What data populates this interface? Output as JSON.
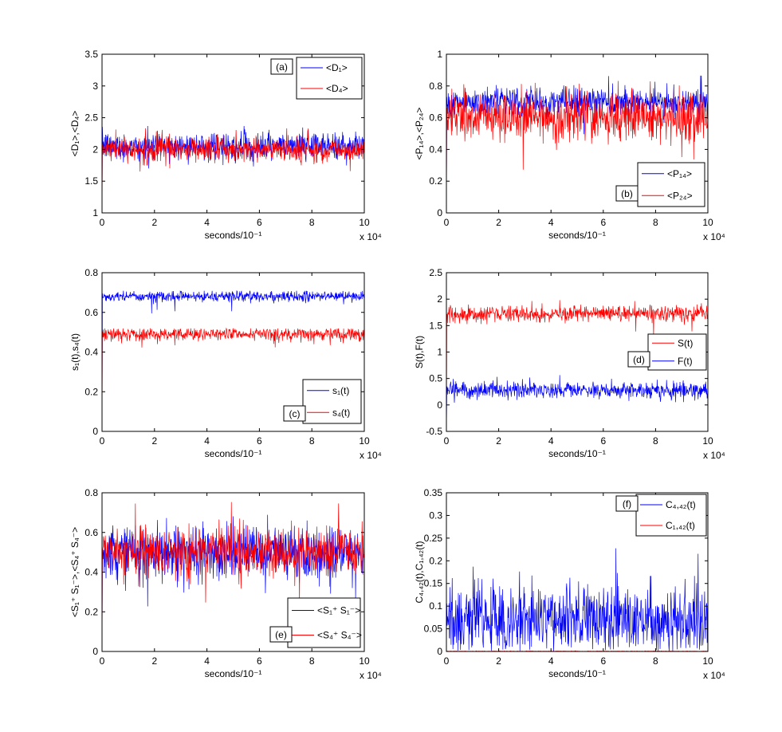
{
  "chart_data": [
    {
      "id": "a",
      "type": "line",
      "panel_label": "(a)",
      "xlabel": "seconds/10⁻¹",
      "ylabel": "<D₁>,<D₄>",
      "x_exponent": "x 10⁴",
      "xlim": [
        0,
        10
      ],
      "ylim": [
        1,
        3.5
      ],
      "xticks": [
        "0",
        "2",
        "4",
        "6",
        "8",
        "10"
      ],
      "yticks": [
        "1",
        "1.5",
        "2",
        "2.5",
        "3",
        "3.5"
      ],
      "legend_position": "top-right",
      "series": [
        {
          "name": "<D₁>",
          "color": "#0000ff",
          "center": 2.05,
          "spread": 0.2,
          "min": 1.7,
          "max": 2.48
        },
        {
          "name": "<D₄>",
          "color": "#ff0000",
          "center": 2.0,
          "spread": 0.18,
          "min": 1.65,
          "max": 2.35
        }
      ]
    },
    {
      "id": "b",
      "type": "line",
      "panel_label": "(b)",
      "xlabel": "seconds/10⁻¹",
      "ylabel": "<P₁₄>,<P₂₄>",
      "x_exponent": "x 10⁴",
      "xlim": [
        0,
        10
      ],
      "ylim": [
        0,
        1
      ],
      "xticks": [
        "0",
        "2",
        "4",
        "6",
        "8",
        "10"
      ],
      "yticks": [
        "0",
        "0.2",
        "0.4",
        "0.6",
        "0.8",
        "1"
      ],
      "legend_position": "bottom-right",
      "series": [
        {
          "name": "<P₁₄>",
          "color": "#0000ff",
          "center": 0.7,
          "spread": 0.08,
          "min": 0.45,
          "max": 0.87
        },
        {
          "name": "<P₂₄>",
          "color": "#ff0000",
          "center": 0.6,
          "spread": 0.14,
          "min": 0.22,
          "max": 0.85
        }
      ]
    },
    {
      "id": "c",
      "type": "line",
      "panel_label": "(c)",
      "xlabel": "seconds/10⁻¹",
      "ylabel": "s₁(t),s₄(t)",
      "x_exponent": "x 10⁴",
      "xlim": [
        0,
        10
      ],
      "ylim": [
        0,
        0.8
      ],
      "xticks": [
        "0",
        "2",
        "4",
        "6",
        "8",
        "10"
      ],
      "yticks": [
        "0",
        "0.2",
        "0.4",
        "0.6",
        "0.8"
      ],
      "legend_position": "bottom-right",
      "series": [
        {
          "name": "s₁(t)",
          "color": "#0000ff",
          "center": 0.68,
          "spread": 0.025,
          "min": 0.55,
          "max": 0.71
        },
        {
          "name": "s₄(t)",
          "color": "#ff0000",
          "center": 0.49,
          "spread": 0.03,
          "min": 0.37,
          "max": 0.52
        }
      ]
    },
    {
      "id": "d",
      "type": "line",
      "panel_label": "(d)",
      "xlabel": "seconds/10⁻¹",
      "ylabel": "S(t),F(t)",
      "x_exponent": "x 10⁴",
      "xlim": [
        0,
        10
      ],
      "ylim": [
        -0.5,
        2.5
      ],
      "xticks": [
        "0",
        "2",
        "4",
        "6",
        "8",
        "10"
      ],
      "yticks": [
        "-0.5",
        "0",
        "0.5",
        "1",
        "1.5",
        "2",
        "2.5"
      ],
      "legend_position": "center-right",
      "series": [
        {
          "name": "S(t)",
          "color": "#ff0000",
          "center": 1.72,
          "spread": 0.14,
          "min": 1.15,
          "max": 2.0
        },
        {
          "name": "F(t)",
          "color": "#0000ff",
          "center": 0.28,
          "spread": 0.14,
          "min": 0.03,
          "max": 0.7
        }
      ]
    },
    {
      "id": "e",
      "type": "line",
      "panel_label": "(e)",
      "xlabel": "seconds/10⁻¹",
      "ylabel": "<S₁⁺ S₁⁻>,<S₄⁺ S₄⁻>",
      "x_exponent": "x 10⁴",
      "xlim": [
        0,
        10
      ],
      "ylim": [
        0,
        0.8
      ],
      "xticks": [
        "0",
        "2",
        "4",
        "6",
        "8",
        "10"
      ],
      "yticks": [
        "0",
        "0.2",
        "0.4",
        "0.6",
        "0.8"
      ],
      "legend_position": "bottom-right",
      "series": [
        {
          "name": "<S₁⁺ S₁⁻>",
          "color": "#0000ff",
          "center": 0.5,
          "spread": 0.12,
          "min": 0.22,
          "max": 0.77
        },
        {
          "name": "<S₄⁺ S₄⁻>",
          "color": "#ff0000",
          "center": 0.5,
          "spread": 0.11,
          "min": 0.22,
          "max": 0.76
        }
      ]
    },
    {
      "id": "f",
      "type": "line",
      "panel_label": "(f)",
      "xlabel": "seconds/10⁻¹",
      "ylabel": "C₄,₄₂(t),C₁,₄₂(t)",
      "x_exponent": "x 10⁴",
      "xlim": [
        0,
        10
      ],
      "ylim": [
        0,
        0.35
      ],
      "xticks": [
        "0",
        "2",
        "4",
        "6",
        "8",
        "10"
      ],
      "yticks": [
        "0",
        "0.05",
        "0.1",
        "0.15",
        "0.2",
        "0.25",
        "0.3",
        "0.35"
      ],
      "legend_position": "top-right",
      "series": [
        {
          "name": "C₄,₄₂(t)",
          "color": "#0000ff",
          "center": 0.07,
          "spread": 0.07,
          "min": 0,
          "max": 0.29
        },
        {
          "name": "C₁,₄₂(t)",
          "color": "#ff0000",
          "center": 0.0005,
          "spread": 0.0005,
          "min": 0,
          "max": 0.003
        }
      ]
    }
  ]
}
